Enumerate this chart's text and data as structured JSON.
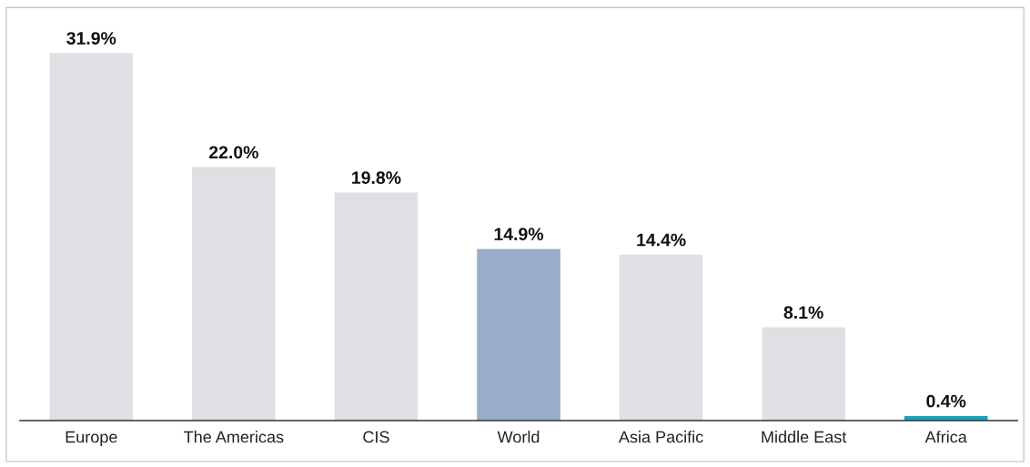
{
  "chart_data": {
    "type": "bar",
    "categories": [
      "Europe",
      "The Americas",
      "CIS",
      "World",
      "Asia Pacific",
      "Middle East",
      "Africa"
    ],
    "values": [
      31.9,
      22.0,
      19.8,
      14.9,
      14.4,
      8.1,
      0.4
    ],
    "colors": [
      "#dfe0e4",
      "#dfe0e4",
      "#dfe0e4",
      "#97adc9",
      "#dfe0e4",
      "#dfe0e4",
      "#1aa3b8"
    ],
    "value_labels": [
      "31.9%",
      "22.0%",
      "19.8%",
      "14.9%",
      "14.4%",
      "8.1%",
      "0.4%"
    ],
    "grid": false,
    "legend": false
  }
}
